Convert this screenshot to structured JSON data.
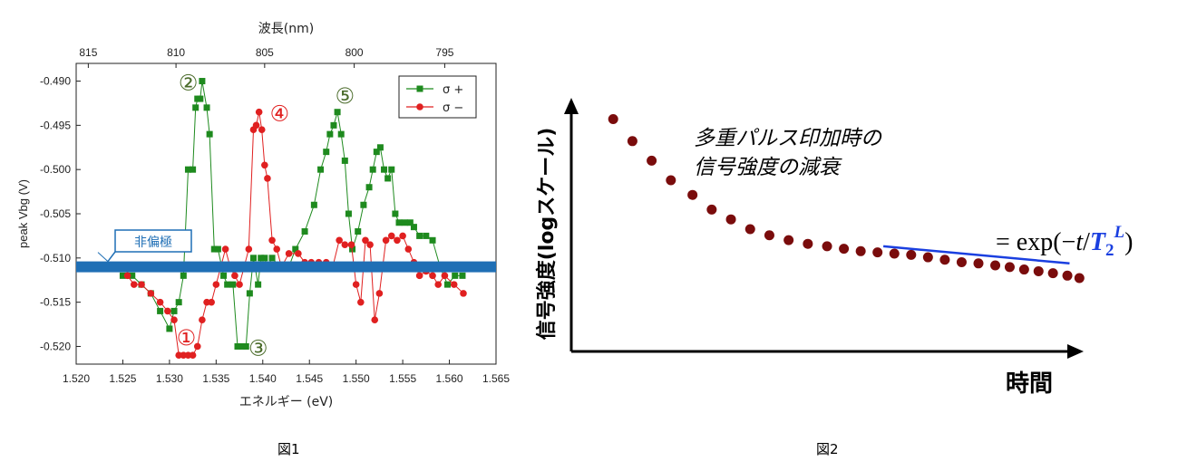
{
  "chart_data": [
    {
      "type": "line",
      "xlabel": "エネルギー (eV)",
      "ylabel": "peak Vbg (V)",
      "top_axis_label": "波長(nm)",
      "xlim": [
        1.52,
        1.565
      ],
      "ylim": [
        -0.522,
        -0.488
      ],
      "x_ticks": [
        "1.520",
        "1.525",
        "1.530",
        "1.535",
        "1.540",
        "1.545",
        "1.550",
        "1.555",
        "1.560",
        "1.565"
      ],
      "y_ticks": [
        "-0.490",
        "-0.495",
        "-0.500",
        "-0.505",
        "-0.510",
        "-0.515",
        "-0.520"
      ],
      "top_ticks": [
        {
          "label": "815",
          "x": 1.5213
        },
        {
          "label": "810",
          "x": 1.5307
        },
        {
          "label": "805",
          "x": 1.5402
        },
        {
          "label": "800",
          "x": 1.5498
        },
        {
          "label": "795",
          "x": 1.5595
        }
      ],
      "legend": "top-right",
      "band": {
        "label": "非偏極",
        "y": -0.511,
        "color": "#1f6fb5"
      },
      "series": [
        {
          "name": "σ +",
          "color": "#1e8a1e",
          "marker": "square",
          "points": [
            [
              1.525,
              -0.512
            ],
            [
              1.526,
              -0.512
            ],
            [
              1.527,
              -0.513
            ],
            [
              1.528,
              -0.514
            ],
            [
              1.529,
              -0.516
            ],
            [
              1.53,
              -0.518
            ],
            [
              1.5305,
              -0.516
            ],
            [
              1.531,
              -0.515
            ],
            [
              1.5315,
              -0.512
            ],
            [
              1.532,
              -0.5
            ],
            [
              1.5325,
              -0.5
            ],
            [
              1.5328,
              -0.493
            ],
            [
              1.533,
              -0.492
            ],
            [
              1.5333,
              -0.492
            ],
            [
              1.5335,
              -0.49
            ],
            [
              1.534,
              -0.493
            ],
            [
              1.5343,
              -0.496
            ],
            [
              1.5348,
              -0.509
            ],
            [
              1.5352,
              -0.509
            ],
            [
              1.5358,
              -0.512
            ],
            [
              1.5362,
              -0.513
            ],
            [
              1.5368,
              -0.513
            ],
            [
              1.5373,
              -0.52
            ],
            [
              1.5378,
              -0.52
            ],
            [
              1.5382,
              -0.52
            ],
            [
              1.5386,
              -0.514
            ],
            [
              1.539,
              -0.51
            ],
            [
              1.5395,
              -0.513
            ],
            [
              1.5398,
              -0.51
            ],
            [
              1.5402,
              -0.51
            ],
            [
              1.5405,
              -0.511
            ],
            [
              1.541,
              -0.51
            ],
            [
              1.5418,
              -0.511
            ],
            [
              1.5428,
              -0.511
            ],
            [
              1.5435,
              -0.509
            ],
            [
              1.5445,
              -0.507
            ],
            [
              1.5455,
              -0.504
            ],
            [
              1.5462,
              -0.5
            ],
            [
              1.5468,
              -0.498
            ],
            [
              1.5472,
              -0.496
            ],
            [
              1.5476,
              -0.495
            ],
            [
              1.548,
              -0.4935
            ],
            [
              1.5484,
              -0.496
            ],
            [
              1.5488,
              -0.499
            ],
            [
              1.5492,
              -0.505
            ],
            [
              1.5496,
              -0.509
            ],
            [
              1.5502,
              -0.507
            ],
            [
              1.5508,
              -0.504
            ],
            [
              1.5514,
              -0.502
            ],
            [
              1.5518,
              -0.5
            ],
            [
              1.5522,
              -0.498
            ],
            [
              1.5526,
              -0.4975
            ],
            [
              1.553,
              -0.5
            ],
            [
              1.5534,
              -0.501
            ],
            [
              1.5538,
              -0.5
            ],
            [
              1.5542,
              -0.505
            ],
            [
              1.5546,
              -0.506
            ],
            [
              1.5552,
              -0.506
            ],
            [
              1.5558,
              -0.506
            ],
            [
              1.5562,
              -0.5065
            ],
            [
              1.5568,
              -0.5075
            ],
            [
              1.5575,
              -0.5075
            ],
            [
              1.5582,
              -0.508
            ],
            [
              1.559,
              -0.511
            ],
            [
              1.5598,
              -0.513
            ],
            [
              1.5606,
              -0.512
            ],
            [
              1.5614,
              -0.512
            ]
          ]
        },
        {
          "name": "σ −",
          "color": "#e02020",
          "marker": "circle",
          "points": [
            [
              1.5255,
              -0.512
            ],
            [
              1.5262,
              -0.513
            ],
            [
              1.527,
              -0.513
            ],
            [
              1.528,
              -0.514
            ],
            [
              1.529,
              -0.515
            ],
            [
              1.5298,
              -0.516
            ],
            [
              1.5305,
              -0.517
            ],
            [
              1.531,
              -0.521
            ],
            [
              1.5315,
              -0.521
            ],
            [
              1.532,
              -0.521
            ],
            [
              1.5325,
              -0.521
            ],
            [
              1.533,
              -0.52
            ],
            [
              1.5335,
              -0.517
            ],
            [
              1.534,
              -0.515
            ],
            [
              1.5345,
              -0.515
            ],
            [
              1.535,
              -0.513
            ],
            [
              1.5355,
              -0.511
            ],
            [
              1.536,
              -0.509
            ],
            [
              1.5365,
              -0.511
            ],
            [
              1.537,
              -0.512
            ],
            [
              1.5375,
              -0.513
            ],
            [
              1.538,
              -0.511
            ],
            [
              1.5385,
              -0.509
            ],
            [
              1.539,
              -0.4955
            ],
            [
              1.5393,
              -0.495
            ],
            [
              1.5396,
              -0.4935
            ],
            [
              1.5399,
              -0.4955
            ],
            [
              1.5402,
              -0.4995
            ],
            [
              1.5405,
              -0.501
            ],
            [
              1.541,
              -0.508
            ],
            [
              1.5415,
              -0.509
            ],
            [
              1.542,
              -0.511
            ],
            [
              1.5428,
              -0.5095
            ],
            [
              1.5438,
              -0.5095
            ],
            [
              1.5445,
              -0.5105
            ],
            [
              1.5452,
              -0.5105
            ],
            [
              1.546,
              -0.5105
            ],
            [
              1.5468,
              -0.5105
            ],
            [
              1.5475,
              -0.511
            ],
            [
              1.5482,
              -0.508
            ],
            [
              1.5488,
              -0.5085
            ],
            [
              1.5495,
              -0.5085
            ],
            [
              1.55,
              -0.513
            ],
            [
              1.5505,
              -0.515
            ],
            [
              1.551,
              -0.508
            ],
            [
              1.5515,
              -0.5085
            ],
            [
              1.552,
              -0.517
            ],
            [
              1.5525,
              -0.514
            ],
            [
              1.5532,
              -0.508
            ],
            [
              1.5538,
              -0.5075
            ],
            [
              1.5544,
              -0.508
            ],
            [
              1.555,
              -0.5075
            ],
            [
              1.5556,
              -0.509
            ],
            [
              1.5562,
              -0.5105
            ],
            [
              1.5568,
              -0.512
            ],
            [
              1.5575,
              -0.5115
            ],
            [
              1.5582,
              -0.512
            ],
            [
              1.5588,
              -0.513
            ],
            [
              1.5595,
              -0.512
            ],
            [
              1.5605,
              -0.513
            ],
            [
              1.5615,
              -0.514
            ]
          ]
        }
      ],
      "annotations": [
        {
          "label": "①",
          "x": 1.5318,
          "y": -0.5188,
          "color": "#e02020"
        },
        {
          "label": "②",
          "x": 1.532,
          "y": -0.49,
          "color": "#4a6b2a"
        },
        {
          "label": "③",
          "x": 1.5395,
          "y": -0.52,
          "color": "#4a6b2a"
        },
        {
          "label": "④",
          "x": 1.5418,
          "y": -0.4935,
          "color": "#e02020"
        },
        {
          "label": "⑤",
          "x": 1.5488,
          "y": -0.4915,
          "color": "#4a6b2a"
        }
      ]
    },
    {
      "type": "scatter",
      "xlabel": "時間",
      "ylabel": "信号強度(logスケール)",
      "title": "多重パルス印加時の\n信号強度の減衰",
      "formula": {
        "eq": "= exp(−",
        "t": "t",
        "slash": "/",
        "T": "T",
        "sub": "2",
        "sup": "L",
        "close": ")"
      },
      "point_color": "#7a0c0c",
      "fit_color": "#1a3fe0",
      "fit_line": {
        "x": [
          0.62,
          0.99
        ],
        "y": [
          0.43,
          0.36
        ]
      },
      "values_normalized": [
        0.95,
        0.86,
        0.78,
        0.7,
        0.64,
        0.58,
        0.54,
        0.5,
        0.475,
        0.455,
        0.44,
        0.43,
        0.42,
        0.41,
        0.405,
        0.4,
        0.395,
        0.385,
        0.375,
        0.365,
        0.36,
        0.352,
        0.345,
        0.335,
        0.328,
        0.32,
        0.31,
        0.3
      ],
      "x_normalized": [
        0.04,
        0.08,
        0.12,
        0.16,
        0.205,
        0.245,
        0.285,
        0.325,
        0.365,
        0.405,
        0.445,
        0.485,
        0.52,
        0.555,
        0.59,
        0.625,
        0.66,
        0.695,
        0.73,
        0.765,
        0.8,
        0.835,
        0.865,
        0.895,
        0.925,
        0.955,
        0.985,
        1.01
      ]
    }
  ],
  "captions": {
    "fig1": "図1",
    "fig2": "図2"
  }
}
